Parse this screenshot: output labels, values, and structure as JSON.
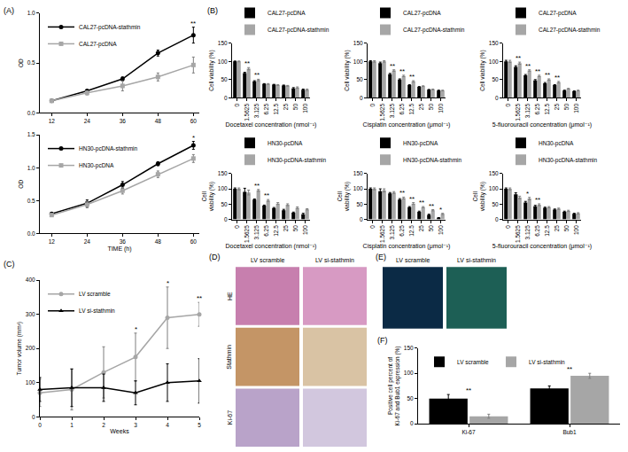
{
  "chart_data": [
    {
      "type": "line",
      "panel": "(A)",
      "x": [
        12,
        24,
        36,
        48,
        60
      ],
      "xlim": [
        8,
        62
      ],
      "xticks": [
        12,
        24,
        36,
        48,
        60
      ],
      "ylabel": "OD",
      "ylim": [
        0,
        1
      ],
      "yticks": [
        {
          "value": 0,
          "label": "0.0"
        },
        {
          "value": 0.5,
          "label": "0.5"
        },
        {
          "value": 1,
          "label": "1.0"
        }
      ],
      "legend": "upper left",
      "series": [
        {
          "name": "CAL27-pcDNA-stathmin",
          "color": "#000000",
          "marker": "circle",
          "values": [
            0.12,
            0.22,
            0.34,
            0.6,
            0.78
          ],
          "errors": [
            0.01,
            0.01,
            0.02,
            0.03,
            0.08
          ]
        },
        {
          "name": "CAL27-pcDNA",
          "color": "#a6a6a6",
          "marker": "square",
          "values": [
            0.12,
            0.2,
            0.27,
            0.36,
            0.48
          ],
          "errors": [
            0.01,
            0.02,
            0.05,
            0.04,
            0.08
          ]
        }
      ],
      "annotations": [
        {
          "x": 60,
          "text": "**"
        }
      ]
    },
    {
      "type": "line",
      "x": [
        12,
        24,
        36,
        48,
        60
      ],
      "xlim": [
        8,
        62
      ],
      "xticks": [
        12,
        24,
        36,
        48,
        60
      ],
      "xlabel": "TIME (h)",
      "ylabel": "OD",
      "ylim": [
        0,
        1.5
      ],
      "yticks": [
        {
          "value": 0,
          "label": "0.0"
        },
        {
          "value": 0.5,
          "label": "0.5"
        },
        {
          "value": 1,
          "label": "1.0"
        },
        {
          "value": 1.5,
          "label": "1.5"
        }
      ],
      "legend": "upper left",
      "series": [
        {
          "name": "HN30-pcDNA-stathmin",
          "color": "#000000",
          "marker": "circle",
          "values": [
            0.3,
            0.46,
            0.74,
            1.06,
            1.34
          ],
          "errors": [
            0.02,
            0.05,
            0.05,
            0.03,
            0.06
          ]
        },
        {
          "name": "HN30-pcDNA",
          "color": "#a6a6a6",
          "marker": "square",
          "values": [
            0.28,
            0.44,
            0.65,
            0.9,
            1.14
          ],
          "errors": [
            0.02,
            0.05,
            0.05,
            0.05,
            0.06
          ]
        }
      ],
      "annotations": [
        {
          "x": 60,
          "text": "*"
        }
      ]
    },
    {
      "type": "bar",
      "panel": "(B)",
      "categories": [
        "0",
        "1.5625",
        "3.125",
        "6.25",
        "12.5",
        "25",
        "50",
        "100"
      ],
      "xlabel": "Docetaxel concentration (nmol⁻¹)",
      "ylabel": "Cell viability (%)",
      "ylim": [
        0,
        150
      ],
      "yticks": [
        0,
        50,
        100,
        150
      ],
      "legend": "top",
      "series": [
        {
          "name": "CAL27-pcDNA",
          "color": "#000000",
          "values": [
            100,
            68,
            45,
            38,
            36,
            34,
            26,
            22
          ],
          "errors": [
            1,
            2,
            2,
            1,
            1,
            1,
            2,
            2
          ]
        },
        {
          "name": "CAL27-pcDNA-stathmin",
          "color": "#a6a6a6",
          "values": [
            100,
            80,
            49,
            38,
            35,
            33,
            28,
            22
          ],
          "errors": [
            1,
            3,
            2,
            1,
            1,
            1,
            2,
            2
          ]
        }
      ],
      "annotations": [
        {
          "x": "1.5625",
          "text": "**"
        },
        {
          "x": "3.125",
          "text": "**"
        }
      ]
    },
    {
      "type": "bar",
      "categories": [
        "0",
        "1.5625",
        "3.125",
        "6.25",
        "12.5",
        "25",
        "50",
        "100"
      ],
      "xlabel": "Cisplatin concentration (μmol⁻¹)",
      "ylabel": "Cell viability (%)",
      "ylim": [
        0,
        150
      ],
      "yticks": [
        0,
        50,
        100,
        150
      ],
      "legend": "top",
      "series": [
        {
          "name": "CAL27-pcDNA",
          "color": "#000000",
          "values": [
            100,
            95,
            65,
            50,
            35,
            30,
            22,
            20
          ],
          "errors": [
            2,
            3,
            2,
            2,
            1,
            1,
            1,
            1
          ]
        },
        {
          "name": "CAL27-pcDNA-stathmin",
          "color": "#a6a6a6",
          "values": [
            100,
            100,
            75,
            60,
            45,
            32,
            23,
            20
          ],
          "errors": [
            2,
            2,
            2,
            2,
            2,
            1,
            1,
            1
          ]
        }
      ],
      "annotations": [
        {
          "x": "3.125",
          "text": "**"
        },
        {
          "x": "6.25",
          "text": "**"
        },
        {
          "x": "12.5",
          "text": "**"
        }
      ]
    },
    {
      "type": "bar",
      "categories": [
        "0",
        "1.5625",
        "3.125",
        "6.25",
        "12.5",
        "25",
        "50",
        "100"
      ],
      "xlabel": "5-fluorouracil concentration (μmol⁻¹)",
      "ylabel": "Cell viability (%)",
      "ylim": [
        0,
        150
      ],
      "yticks": [
        0,
        50,
        100,
        150
      ],
      "legend": "top",
      "series": [
        {
          "name": "CAL27-pcDNA",
          "color": "#000000",
          "values": [
            100,
            85,
            62,
            48,
            40,
            35,
            20,
            18
          ],
          "errors": [
            3,
            3,
            2,
            2,
            2,
            1,
            1,
            1
          ]
        },
        {
          "name": "CAL27-pcDNA-stathmin",
          "color": "#a6a6a6",
          "values": [
            100,
            95,
            75,
            60,
            50,
            43,
            25,
            20
          ],
          "errors": [
            3,
            3,
            2,
            2,
            2,
            2,
            1,
            1
          ]
        }
      ],
      "annotations": [
        {
          "x": "1.5625",
          "text": "**"
        },
        {
          "x": "3.125",
          "text": "**"
        },
        {
          "x": "6.25",
          "text": "**"
        },
        {
          "x": "12.5",
          "text": "**"
        },
        {
          "x": "25",
          "text": "**"
        }
      ]
    },
    {
      "type": "bar",
      "categories": [
        "0",
        "1.5625",
        "3.125",
        "6.25",
        "12.5",
        "25",
        "50",
        "100"
      ],
      "xlabel": "Docetaxel concentration (nmol⁻¹)",
      "ylabel": "Cell viability (%)",
      "ylim": [
        0,
        150
      ],
      "yticks": [
        0,
        50,
        100,
        150
      ],
      "legend": "top",
      "series": [
        {
          "name": "HN30-pcDNA",
          "color": "#000000",
          "values": [
            100,
            90,
            65,
            45,
            37,
            30,
            22,
            17
          ],
          "errors": [
            3,
            12,
            2,
            2,
            2,
            3,
            2,
            3
          ]
        },
        {
          "name": "HN30-pcDNA-stathmin",
          "color": "#a6a6a6",
          "values": [
            100,
            88,
            95,
            62,
            52,
            48,
            38,
            33
          ],
          "errors": [
            3,
            8,
            3,
            3,
            3,
            3,
            3,
            2
          ]
        }
      ],
      "annotations": [
        {
          "x": "3.125",
          "text": "**"
        },
        {
          "x": "6.25",
          "text": "**"
        }
      ]
    },
    {
      "type": "bar",
      "categories": [
        "0",
        "1.5625",
        "3.125",
        "6.25",
        "12.5",
        "25",
        "50",
        "100"
      ],
      "xlabel": "Cisplatin concentration (μmol⁻¹)",
      "ylabel": "Cell viability (%)",
      "ylim": [
        0,
        150
      ],
      "yticks": [
        0,
        50,
        100,
        150
      ],
      "legend": "top",
      "series": [
        {
          "name": "HN30-pcDNA",
          "color": "#000000",
          "values": [
            100,
            92,
            85,
            65,
            40,
            25,
            15,
            5
          ],
          "errors": [
            3,
            8,
            3,
            3,
            2,
            2,
            2,
            1
          ]
        },
        {
          "name": "HN30-pcDNA-stathmin",
          "color": "#a6a6a6",
          "values": [
            100,
            95,
            88,
            70,
            52,
            40,
            30,
            18
          ],
          "errors": [
            3,
            5,
            3,
            3,
            3,
            2,
            2,
            2
          ]
        }
      ],
      "annotations": [
        {
          "x": "6.25",
          "text": "**"
        },
        {
          "x": "12.5",
          "text": "**"
        },
        {
          "x": "25",
          "text": "**"
        },
        {
          "x": "50",
          "text": "**"
        },
        {
          "x": "100",
          "text": "*"
        }
      ]
    },
    {
      "type": "bar",
      "categories": [
        "0",
        "1.5625",
        "3.125",
        "6.25",
        "12.5",
        "25",
        "50",
        "100"
      ],
      "xlabel": "5-fluorouracil concentration (μmol⁻¹)",
      "ylabel": "Cell viability (%)",
      "ylim": [
        0,
        150
      ],
      "yticks": [
        0,
        50,
        100,
        150
      ],
      "legend": "top",
      "series": [
        {
          "name": "HN30-pcDNA",
          "color": "#000000",
          "values": [
            100,
            82,
            55,
            43,
            38,
            32,
            25,
            18
          ],
          "errors": [
            3,
            5,
            4,
            3,
            2,
            2,
            2,
            2
          ]
        },
        {
          "name": "HN30-pcDNA-stathmin",
          "color": "#a6a6a6",
          "values": [
            100,
            72,
            68,
            48,
            40,
            35,
            28,
            20
          ],
          "errors": [
            3,
            4,
            4,
            3,
            2,
            2,
            2,
            2
          ]
        }
      ],
      "annotations": [
        {
          "x": "3.125",
          "text": "*"
        },
        {
          "x": "6.25",
          "text": "**"
        }
      ]
    },
    {
      "type": "line",
      "panel": "(C)",
      "x": [
        0,
        1,
        2,
        3,
        4,
        5
      ],
      "xlim": [
        0,
        5
      ],
      "xticks": [
        0,
        1,
        2,
        3,
        4,
        5
      ],
      "xlabel": "Weeks",
      "ylabel": "Tumor volume (mm³)",
      "ylim": [
        0,
        400
      ],
      "yticks": [
        0,
        100,
        200,
        300,
        400
      ],
      "legend": "upper left",
      "series": [
        {
          "name": "LV scramble",
          "color": "#a6a6a6",
          "marker": "circle",
          "values": [
            70,
            80,
            130,
            175,
            290,
            300
          ],
          "errors": [
            40,
            60,
            75,
            70,
            90,
            35
          ]
        },
        {
          "name": "LV si-stathmin",
          "color": "#000000",
          "marker": "triangle-up",
          "values": [
            80,
            85,
            85,
            70,
            100,
            105
          ],
          "errors": [
            35,
            55,
            40,
            35,
            55,
            65
          ]
        }
      ],
      "annotations": [
        {
          "x": 3,
          "text": "*"
        },
        {
          "x": 4,
          "text": "*"
        },
        {
          "x": 5,
          "text": "**"
        }
      ]
    },
    {
      "type": "image_grid",
      "panel": "(D)",
      "columns": [
        "LV scramble",
        "LV si-stathmin"
      ],
      "rows": [
        "HE",
        "Stathmin",
        "Ki-67"
      ]
    },
    {
      "type": "image_grid",
      "panel": "(E)",
      "columns": [
        "LV scramble",
        "LV si-stathmin"
      ]
    },
    {
      "type": "bar",
      "panel": "(F)",
      "categories": [
        "Ki-67",
        "Bub1"
      ],
      "ylabel": "Positive cell percent of Ki-67 and Bub1 expression (%)",
      "ylim": [
        0,
        150
      ],
      "yticks": [
        0,
        50,
        100,
        150
      ],
      "legend": "upper left",
      "series": [
        {
          "name": "LV scramble",
          "color": "#000000",
          "values": [
            50,
            70
          ],
          "errors": [
            8,
            5
          ]
        },
        {
          "name": "LV si-stathmin",
          "color": "#a6a6a6",
          "values": [
            15,
            95
          ],
          "errors": [
            4,
            5
          ]
        }
      ],
      "annotations": [
        {
          "x": "Ki-67",
          "text": "**"
        },
        {
          "x": "Bub1",
          "text": "**"
        }
      ]
    }
  ]
}
